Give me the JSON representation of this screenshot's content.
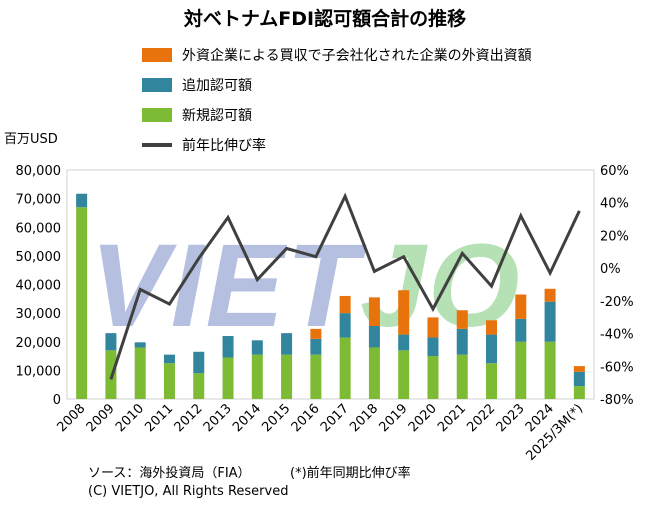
{
  "title": "対ベトナムFDI認可額合計の推移",
  "unit_label": "百万USD",
  "watermark": {
    "part1": "VIET",
    "part2": "JO"
  },
  "source": "ソース：海外投資局（FIA）",
  "footnote": "(*)前年同期比伸び率",
  "copyright": "(C) VIETJO, All Rights Reserved",
  "colors": {
    "ma": "#E8720C",
    "additional": "#31859C",
    "new": "#7DBB35",
    "growth": "#404040"
  },
  "chart_data": {
    "type": "bar",
    "stacked": true,
    "categories": [
      "2008",
      "2009",
      "2010",
      "2011",
      "2012",
      "2013",
      "2014",
      "2015",
      "2016",
      "2017",
      "2018",
      "2019",
      "2020",
      "2021",
      "2022",
      "2023",
      "2024",
      "2025/3M(*)"
    ],
    "series": [
      {
        "name": "新規認可額",
        "key": "new",
        "axis": "left",
        "values": [
          67000,
          17000,
          18000,
          12500,
          9000,
          14500,
          15500,
          15500,
          15500,
          21500,
          18000,
          17000,
          15000,
          15500,
          12500,
          20000,
          20000,
          4500
        ]
      },
      {
        "name": "追加認可額",
        "key": "additional",
        "axis": "left",
        "values": [
          4700,
          6000,
          1800,
          3000,
          7500,
          7500,
          5000,
          7500,
          5500,
          8500,
          7500,
          5500,
          6500,
          9000,
          10000,
          8000,
          14000,
          5000
        ]
      },
      {
        "name": "外資企業による買収で子会社化された企業の外資出資額",
        "key": "ma",
        "axis": "left",
        "values": [
          0,
          0,
          0,
          0,
          0,
          0,
          0,
          0,
          3500,
          6000,
          10000,
          15500,
          7000,
          6500,
          5000,
          8500,
          4500,
          2000
        ]
      },
      {
        "name": "前年比伸び率",
        "key": "growth",
        "type": "line",
        "axis": "right",
        "values": [
          null,
          -68,
          -13,
          -22,
          6,
          31,
          -7,
          12,
          7,
          44,
          -2,
          7,
          -25,
          9,
          -11,
          32,
          -3,
          35
        ]
      }
    ],
    "y_left": {
      "min": 0,
      "max": 80000,
      "ticks": [
        "0",
        "10,000",
        "20,000",
        "30,000",
        "40,000",
        "50,000",
        "60,000",
        "70,000",
        "80,000"
      ]
    },
    "y_right": {
      "min": -80,
      "max": 60,
      "ticks": [
        "-80%",
        "-60%",
        "-40%",
        "-20%",
        "0%",
        "20%",
        "40%",
        "60%"
      ]
    },
    "legend_position": "top"
  }
}
